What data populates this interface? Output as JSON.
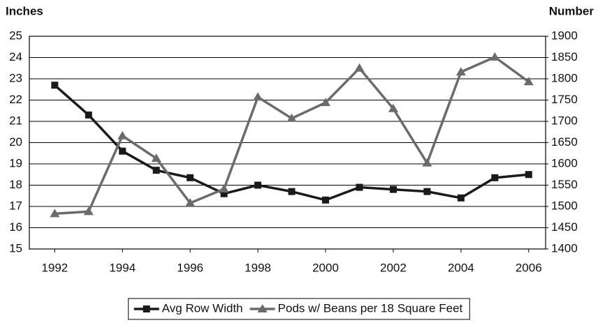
{
  "chart_data": {
    "type": "line",
    "y_label": "Inches",
    "y2_label": "Number",
    "x": [
      1992,
      1993,
      1994,
      1995,
      1996,
      1997,
      1998,
      1999,
      2000,
      2001,
      2002,
      2003,
      2004,
      2005,
      2006
    ],
    "xlim": [
      1991.25,
      2006.5
    ],
    "xticks": [
      1992,
      1994,
      1996,
      1998,
      2000,
      2002,
      2004,
      2006
    ],
    "ylim": [
      15,
      25
    ],
    "yticks": [
      15,
      16,
      17,
      18,
      19,
      20,
      21,
      22,
      23,
      24,
      25
    ],
    "y2lim": [
      1400,
      1900
    ],
    "y2ticks": [
      1400,
      1450,
      1500,
      1550,
      1600,
      1650,
      1700,
      1750,
      1800,
      1850,
      1900
    ],
    "grid": true,
    "legend": "bottom",
    "series": [
      {
        "name": "Avg Row Width",
        "color": "#1a1a1a",
        "marker": "square",
        "values": [
          22.7,
          21.3,
          19.6,
          18.7,
          18.35,
          17.6,
          18.0,
          17.7,
          17.3,
          17.9,
          17.8,
          17.7,
          17.4,
          18.35,
          18.5
        ]
      },
      {
        "name": "Pods w/ Beans per 18 Square Feet",
        "color": "#6b6b6b",
        "marker": "triangle",
        "axis": "y2",
        "values": [
          1483,
          1488,
          1666,
          1613,
          1508,
          1541,
          1757,
          1707,
          1744,
          1825,
          1730,
          1602,
          1816,
          1851,
          1793
        ]
      }
    ]
  }
}
